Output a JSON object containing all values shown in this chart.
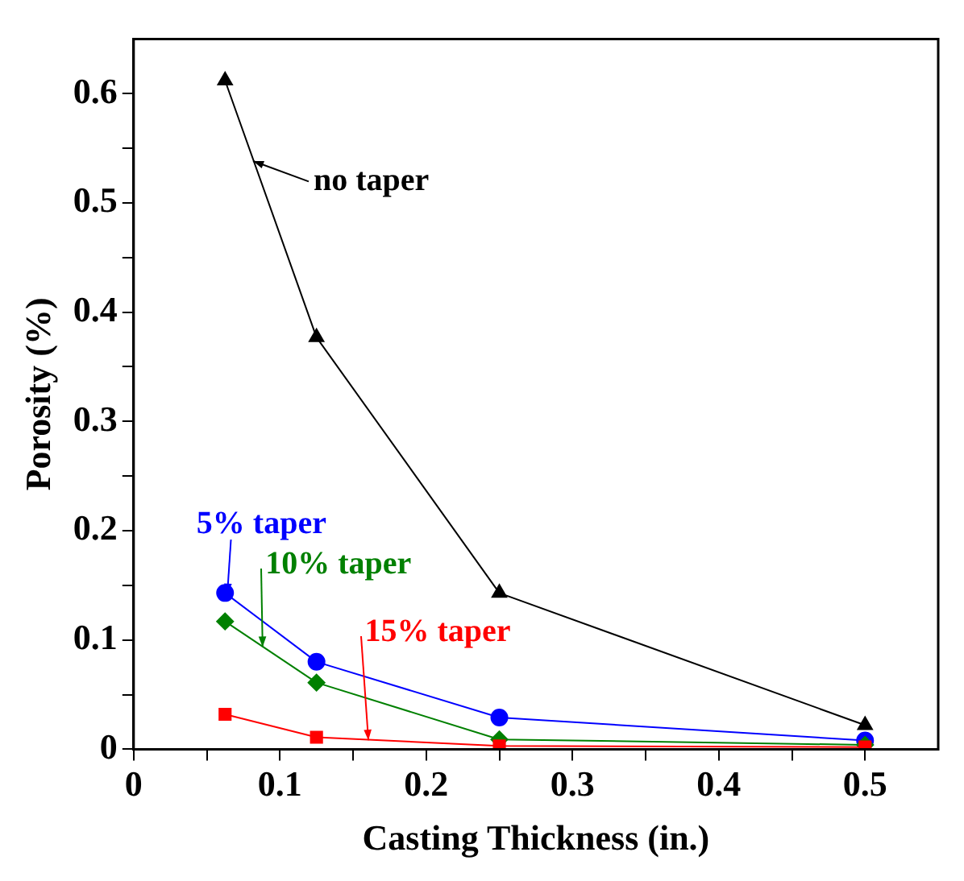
{
  "chart_data": {
    "type": "line",
    "xlabel": "Casting Thickness (in.)",
    "ylabel": "Porosity (%)",
    "xlim": [
      0,
      0.55
    ],
    "ylim": [
      0,
      0.65
    ],
    "xticks": [
      0,
      {
        "value": 0.05,
        "label": null
      },
      0.1,
      {
        "value": 0.15,
        "label": null
      },
      0.2,
      {
        "value": 0.25,
        "label": null
      },
      0.3,
      {
        "value": 0.35,
        "label": null
      },
      0.4,
      {
        "value": 0.45,
        "label": null
      },
      0.5
    ],
    "yticks": [
      0,
      {
        "value": 0.05,
        "label": null
      },
      0.1,
      {
        "value": 0.15,
        "label": null
      },
      0.2,
      {
        "value": 0.25,
        "label": null
      },
      0.3,
      {
        "value": 0.35,
        "label": null
      },
      0.4,
      {
        "value": 0.45,
        "label": null
      },
      0.5,
      {
        "value": 0.55,
        "label": null
      },
      0.6
    ],
    "x": [
      0.0625,
      0.125,
      0.25,
      0.5
    ],
    "series": [
      {
        "name": "no taper",
        "color": "#000000",
        "marker": "triangle",
        "values": [
          0.612,
          0.377,
          0.143,
          0.022
        ]
      },
      {
        "name": "5% taper",
        "color": "#0000ff",
        "marker": "circle",
        "values": [
          0.143,
          0.08,
          0.029,
          0.008
        ]
      },
      {
        "name": "10% taper",
        "color": "#008000",
        "marker": "diamond",
        "values": [
          0.117,
          0.061,
          0.009,
          0.004
        ]
      },
      {
        "name": "15% taper",
        "color": "#ff0000",
        "marker": "square",
        "values": [
          0.032,
          0.011,
          0.003,
          0.002
        ]
      }
    ]
  }
}
